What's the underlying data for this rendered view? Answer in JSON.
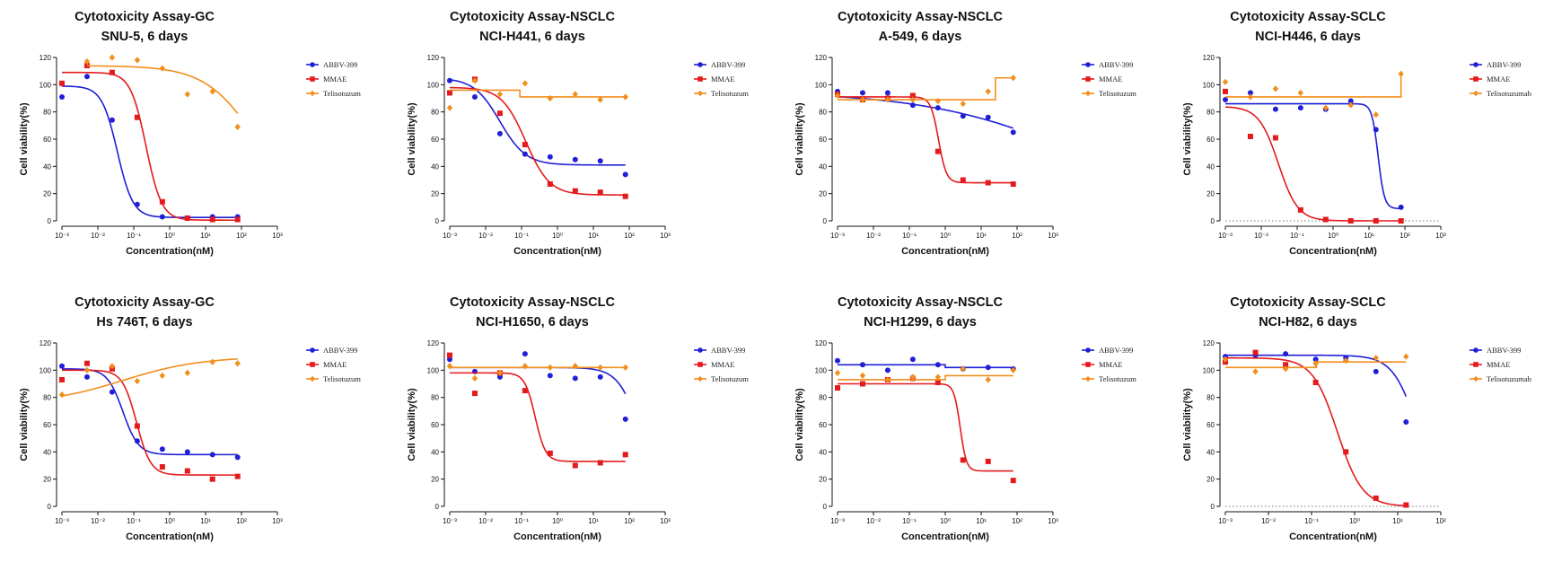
{
  "colors": {
    "ABBV-399": "#1f1fd6",
    "MMAE": "#e41a1c",
    "Telisotuzum": "#f28e1c"
  },
  "chart_data": [
    {
      "type": "scatter",
      "title": "Cytotoxicity Assay-GC",
      "subtitle": "SNU-5, 6 days",
      "xlabel": "Concentration(nM)",
      "ylabel": "Cell viability(%)",
      "xscale": "log",
      "xlim_exp": [
        -3,
        3
      ],
      "ylim": [
        0,
        120
      ],
      "xticks": [
        "10⁻³",
        "10⁻²",
        "10⁻¹",
        "10⁰",
        "10¹",
        "10²",
        "10³"
      ],
      "yticks": [
        "0",
        "20",
        "40",
        "60",
        "80",
        "100",
        "120"
      ],
      "legend": [
        "ABBV-399",
        "MMAE",
        "Telisotuzum"
      ],
      "baseline": false,
      "series": [
        {
          "name": "ABBV-399",
          "shape": "circle",
          "x": [
            0.001,
            0.005,
            0.025,
            0.125,
            0.625,
            3.125,
            15.625,
            78.125
          ],
          "y": [
            91,
            106,
            74,
            12,
            3,
            2,
            3,
            3
          ],
          "fit": {
            "type": "sigmoid",
            "top": 99,
            "bottom": 2.5,
            "ec50": 0.035,
            "hill": 2.0
          }
        },
        {
          "name": "MMAE",
          "shape": "square",
          "x": [
            0.001,
            0.005,
            0.025,
            0.125,
            0.625,
            3.125,
            15.625,
            78.125
          ],
          "y": [
            101,
            114,
            109,
            76,
            14,
            2,
            1,
            1
          ],
          "fit": {
            "type": "sigmoid",
            "top": 109,
            "bottom": 0.5,
            "ec50": 0.22,
            "hill": 2.0
          }
        },
        {
          "name": "Telisotuzum",
          "shape": "diamond",
          "x": [
            0.005,
            0.025,
            0.125,
            0.625,
            3.125,
            15.625,
            78.125
          ],
          "y": [
            117,
            120,
            118,
            112,
            93,
            95,
            69
          ],
          "fit": {
            "type": "sigmoid",
            "top": 114,
            "bottom": 0,
            "ec50": 300,
            "hill": 0.6
          }
        }
      ]
    },
    {
      "type": "scatter",
      "title": "Cytotoxicity Assay-NSCLC",
      "subtitle": "NCI-H441, 6 days",
      "xlabel": "Concentration(nM)",
      "ylabel": "Cell viability(%)",
      "xscale": "log",
      "xlim_exp": [
        -3,
        3
      ],
      "ylim": [
        0,
        120
      ],
      "xticks": [
        "10⁻³",
        "10⁻²",
        "10⁻¹",
        "10⁰",
        "10¹",
        "10²",
        "10³"
      ],
      "yticks": [
        "0",
        "20",
        "40",
        "60",
        "80",
        "100",
        "120"
      ],
      "legend": [
        "ABBV-399",
        "MMAE",
        "Telisotuzum"
      ],
      "baseline": false,
      "series": [
        {
          "name": "ABBV-399",
          "shape": "circle",
          "x": [
            0.001,
            0.005,
            0.025,
            0.125,
            0.625,
            3.125,
            15.625,
            78.125
          ],
          "y": [
            103,
            91,
            64,
            49,
            47,
            45,
            44,
            34
          ],
          "fit": {
            "type": "sigmoid",
            "top": 105,
            "bottom": 41,
            "ec50": 0.025,
            "hill": 1.2
          }
        },
        {
          "name": "MMAE",
          "shape": "square",
          "x": [
            0.001,
            0.005,
            0.025,
            0.125,
            0.625,
            3.125,
            15.625,
            78.125
          ],
          "y": [
            94,
            104,
            79,
            56,
            27,
            22,
            21,
            18
          ],
          "fit": {
            "type": "sigmoid",
            "top": 98,
            "bottom": 19,
            "ec50": 0.13,
            "hill": 1.3
          }
        },
        {
          "name": "Telisotuzum",
          "shape": "diamond",
          "x": [
            0.001,
            0.005,
            0.025,
            0.125,
            0.625,
            3.125,
            15.625,
            78.125
          ],
          "y": [
            83,
            103,
            93,
            101,
            90,
            93,
            89,
            91
          ],
          "fit": {
            "type": "step",
            "left": 96,
            "right": 91,
            "at": 0.09
          }
        }
      ]
    },
    {
      "type": "scatter",
      "title": "Cytotoxicity Assay-NSCLC",
      "subtitle": "A-549, 6 days",
      "xlabel": "Concentration(nM)",
      "ylabel": "Cell viability(%)",
      "xscale": "log",
      "xlim_exp": [
        -3,
        3
      ],
      "ylim": [
        0,
        120
      ],
      "xticks": [
        "10⁻³",
        "10⁻²",
        "10⁻¹",
        "10⁰",
        "10¹",
        "10²",
        "10³"
      ],
      "yticks": [
        "0",
        "20",
        "40",
        "60",
        "80",
        "100",
        "120"
      ],
      "legend": [
        "ABBV-399",
        "MMAE",
        "Telisotuzum"
      ],
      "baseline": false,
      "series": [
        {
          "name": "ABBV-399",
          "shape": "circle",
          "x": [
            0.001,
            0.005,
            0.025,
            0.125,
            0.625,
            3.125,
            15.625,
            78.125
          ],
          "y": [
            95,
            94,
            94,
            85,
            83,
            77,
            76,
            65
          ],
          "fit": {
            "type": "sigmoid",
            "top": 95,
            "bottom": 0,
            "ec50": 8000,
            "hill": 0.2
          }
        },
        {
          "name": "MMAE",
          "shape": "square",
          "x": [
            0.001,
            0.005,
            0.025,
            0.125,
            0.625,
            3.125,
            15.625,
            78.125
          ],
          "y": [
            93,
            89,
            90,
            92,
            51,
            30,
            28,
            27
          ],
          "fit": {
            "type": "sigmoid",
            "top": 91,
            "bottom": 28,
            "ec50": 0.65,
            "hill": 4.0
          }
        },
        {
          "name": "Telisotuzum",
          "shape": "diamond",
          "x": [
            0.001,
            0.005,
            0.025,
            0.125,
            0.625,
            3.125,
            15.625,
            78.125
          ],
          "y": [
            92,
            89,
            89,
            89,
            88,
            86,
            95,
            105
          ],
          "fit": {
            "type": "step",
            "left": 89,
            "right": 105,
            "at": 25
          }
        }
      ]
    },
    {
      "type": "scatter",
      "title": "Cytotoxicity Assay-SCLC",
      "subtitle": "NCI-H446, 6 days",
      "xlabel": "Concentration(nM)",
      "ylabel": "Cell viability(%)",
      "xscale": "log",
      "xlim_exp": [
        -3,
        3
      ],
      "ylim": [
        0,
        120
      ],
      "xticks": [
        "10⁻³",
        "10⁻²",
        "10⁻¹",
        "10⁰",
        "10¹",
        "10²",
        "10³"
      ],
      "yticks": [
        "0",
        "20",
        "40",
        "60",
        "80",
        "100",
        "120"
      ],
      "legend": [
        "ABBV-399",
        "MMAE",
        "Telisotuzumab"
      ],
      "baseline": true,
      "series": [
        {
          "name": "ABBV-399",
          "shape": "circle",
          "x": [
            0.001,
            0.005,
            0.025,
            0.125,
            0.625,
            3.125,
            15.625,
            78.125
          ],
          "y": [
            89,
            94,
            82,
            83,
            82,
            88,
            67,
            10
          ],
          "fit": {
            "type": "sigmoid",
            "top": 86,
            "bottom": 9,
            "ec50": 18,
            "hill": 5.0
          }
        },
        {
          "name": "MMAE",
          "shape": "square",
          "x": [
            0.001,
            0.005,
            0.025,
            0.125,
            0.625,
            3.125,
            15.625,
            78.125
          ],
          "y": [
            95,
            62,
            61,
            8,
            1,
            0,
            0,
            0
          ],
          "fit": {
            "type": "sigmoid",
            "top": 84,
            "bottom": 0,
            "ec50": 0.03,
            "hill": 1.6
          }
        },
        {
          "name": "Telisotuzumab",
          "shape": "diamond",
          "x": [
            0.001,
            0.005,
            0.025,
            0.125,
            0.625,
            3.125,
            15.625,
            78.125
          ],
          "y": [
            102,
            91,
            97,
            94,
            83,
            85,
            78,
            108
          ],
          "fit": {
            "type": "step",
            "left": 91,
            "right": 108,
            "at": 78
          }
        }
      ]
    },
    {
      "type": "scatter",
      "title": "Cytotoxicity Assay-GC",
      "subtitle": "Hs 746T, 6 days",
      "xlabel": "Concentration(nM)",
      "ylabel": "Cell viability(%)",
      "xscale": "log",
      "xlim_exp": [
        -3,
        3
      ],
      "ylim": [
        0,
        120
      ],
      "xticks": [
        "10⁻³",
        "10⁻²",
        "10⁻¹",
        "10⁰",
        "10¹",
        "10²",
        "10³"
      ],
      "yticks": [
        "0",
        "20",
        "40",
        "60",
        "80",
        "100",
        "120"
      ],
      "legend": [
        "ABBV-399",
        "MMAE",
        "Telisotuzum"
      ],
      "baseline": false,
      "series": [
        {
          "name": "ABBV-399",
          "shape": "circle",
          "x": [
            0.001,
            0.005,
            0.025,
            0.125,
            0.625,
            3.125,
            15.625,
            78.125
          ],
          "y": [
            103,
            95,
            84,
            48,
            42,
            40,
            38,
            36
          ],
          "fit": {
            "type": "sigmoid",
            "top": 101,
            "bottom": 38,
            "ec50": 0.05,
            "hill": 2.0
          }
        },
        {
          "name": "MMAE",
          "shape": "square",
          "x": [
            0.001,
            0.005,
            0.025,
            0.125,
            0.625,
            3.125,
            15.625,
            78.125
          ],
          "y": [
            93,
            105,
            101,
            59,
            29,
            26,
            20,
            22
          ],
          "fit": {
            "type": "sigmoid",
            "top": 100,
            "bottom": 23,
            "ec50": 0.12,
            "hill": 2.2
          }
        },
        {
          "name": "Telisotuzum",
          "shape": "diamond",
          "x": [
            0.001,
            0.005,
            0.025,
            0.125,
            0.625,
            3.125,
            15.625,
            78.125
          ],
          "y": [
            82,
            100,
            103,
            92,
            96,
            98,
            106,
            105
          ],
          "fit": {
            "type": "sigmoid",
            "top": 75,
            "bottom": 110,
            "ec50": 0.05,
            "hill": 0.4
          }
        }
      ]
    },
    {
      "type": "scatter",
      "title": "Cytotoxicity Assay-NSCLC",
      "subtitle": "NCI-H1650, 6 days",
      "xlabel": "Concentration(nM)",
      "ylabel": "Cell viability(%)",
      "xscale": "log",
      "xlim_exp": [
        -3,
        3
      ],
      "ylim": [
        0,
        120
      ],
      "xticks": [
        "10⁻³",
        "10⁻²",
        "10⁻¹",
        "10⁰",
        "10¹",
        "10²",
        "10³"
      ],
      "yticks": [
        "0",
        "20",
        "40",
        "60",
        "80",
        "100",
        "120"
      ],
      "legend": [
        "ABBV-399",
        "MMAE",
        "Telisotuzum"
      ],
      "baseline": false,
      "series": [
        {
          "name": "ABBV-399",
          "shape": "circle",
          "x": [
            0.001,
            0.005,
            0.025,
            0.125,
            0.625,
            3.125,
            15.625,
            78.125
          ],
          "y": [
            108,
            99,
            95,
            112,
            96,
            94,
            95,
            64
          ],
          "fit": {
            "type": "sigmoid",
            "top": 102,
            "bottom": 0,
            "ec50": 220,
            "hill": 1.4
          }
        },
        {
          "name": "MMAE",
          "shape": "square",
          "x": [
            0.001,
            0.005,
            0.025,
            0.125,
            0.625,
            3.125,
            15.625,
            78.125
          ],
          "y": [
            111,
            83,
            98,
            85,
            39,
            30,
            32,
            38
          ],
          "fit": {
            "type": "sigmoid",
            "top": 98,
            "bottom": 33,
            "ec50": 0.24,
            "hill": 3.0
          }
        },
        {
          "name": "Telisotuzum",
          "shape": "diamond",
          "x": [
            0.001,
            0.005,
            0.025,
            0.125,
            0.625,
            3.125,
            15.625,
            78.125
          ],
          "y": [
            103,
            94,
            98,
            103,
            102,
            103,
            102,
            102
          ],
          "fit": {
            "type": "step",
            "left": 102,
            "right": 102,
            "at": 1
          }
        }
      ]
    },
    {
      "type": "scatter",
      "title": "Cytotoxicity Assay-NSCLC",
      "subtitle": "NCI-H1299, 6 days",
      "xlabel": "Concentration(nM)",
      "ylabel": "Cell viability(%)",
      "xscale": "log",
      "xlim_exp": [
        -3,
        3
      ],
      "ylim": [
        0,
        120
      ],
      "xticks": [
        "10⁻³",
        "10⁻²",
        "10⁻¹",
        "10⁰",
        "10¹",
        "10²",
        "10³"
      ],
      "yticks": [
        "0",
        "20",
        "40",
        "60",
        "80",
        "100",
        "120"
      ],
      "legend": [
        "ABBV-399",
        "MMAE",
        "Telisotuzum"
      ],
      "baseline": false,
      "series": [
        {
          "name": "ABBV-399",
          "shape": "circle",
          "x": [
            0.001,
            0.005,
            0.025,
            0.125,
            0.625,
            3.125,
            15.625,
            78.125
          ],
          "y": [
            107,
            104,
            100,
            108,
            104,
            101,
            102,
            101
          ],
          "fit": {
            "type": "step",
            "left": 104,
            "right": 102,
            "at": 1
          }
        },
        {
          "name": "MMAE",
          "shape": "square",
          "x": [
            0.001,
            0.005,
            0.025,
            0.125,
            0.625,
            3.125,
            15.625,
            78.125
          ],
          "y": [
            87,
            90,
            93,
            94,
            91,
            34,
            33,
            19
          ],
          "fit": {
            "type": "sigmoid",
            "top": 90,
            "bottom": 26,
            "ec50": 2.6,
            "hill": 5.0
          }
        },
        {
          "name": "Telisotuzum",
          "shape": "diamond",
          "x": [
            0.001,
            0.005,
            0.025,
            0.125,
            0.625,
            3.125,
            15.625,
            78.125
          ],
          "y": [
            98,
            96,
            93,
            95,
            95,
            101,
            93,
            100
          ],
          "fit": {
            "type": "step",
            "left": 93,
            "right": 96,
            "at": 1
          }
        }
      ]
    },
    {
      "type": "scatter",
      "title": "Cytotoxicity Assay-SCLC",
      "subtitle": "NCI-H82, 6 days",
      "xlabel": "Concentration(nM)",
      "ylabel": "Cell viability(%)",
      "xscale": "log",
      "xlim_exp": [
        -3,
        2
      ],
      "ylim": [
        0,
        120
      ],
      "xticks": [
        "10⁻³",
        "10⁻²",
        "10⁻¹",
        "10⁰",
        "10¹",
        "10²"
      ],
      "yticks": [
        "0",
        "20",
        "40",
        "60",
        "80",
        "100",
        "120"
      ],
      "legend": [
        "ABBV-399",
        "MMAE",
        "Telisotuzumab"
      ],
      "baseline": true,
      "series": [
        {
          "name": "ABBV-399",
          "shape": "circle",
          "x": [
            0.001,
            0.005,
            0.025,
            0.125,
            0.625,
            3.125,
            15.625
          ],
          "y": [
            110,
            111,
            112,
            108,
            109,
            99,
            62
          ],
          "fit": {
            "type": "sigmoid",
            "top": 111,
            "bottom": 0,
            "ec50": 30,
            "hill": 1.5
          }
        },
        {
          "name": "MMAE",
          "shape": "square",
          "x": [
            0.001,
            0.005,
            0.025,
            0.125,
            0.625,
            3.125,
            15.625
          ],
          "y": [
            106,
            113,
            104,
            91,
            40,
            6,
            1
          ],
          "fit": {
            "type": "sigmoid",
            "top": 109,
            "bottom": 0,
            "ec50": 0.4,
            "hill": 1.5
          }
        },
        {
          "name": "Telisotuzumab",
          "shape": "diamond",
          "x": [
            0.001,
            0.005,
            0.025,
            0.125,
            0.625,
            3.125,
            15.625
          ],
          "y": [
            108,
            99,
            101,
            105,
            107,
            109,
            110
          ],
          "fit": {
            "type": "step",
            "left": 102,
            "right": 106,
            "at": 0.13
          }
        }
      ]
    }
  ]
}
